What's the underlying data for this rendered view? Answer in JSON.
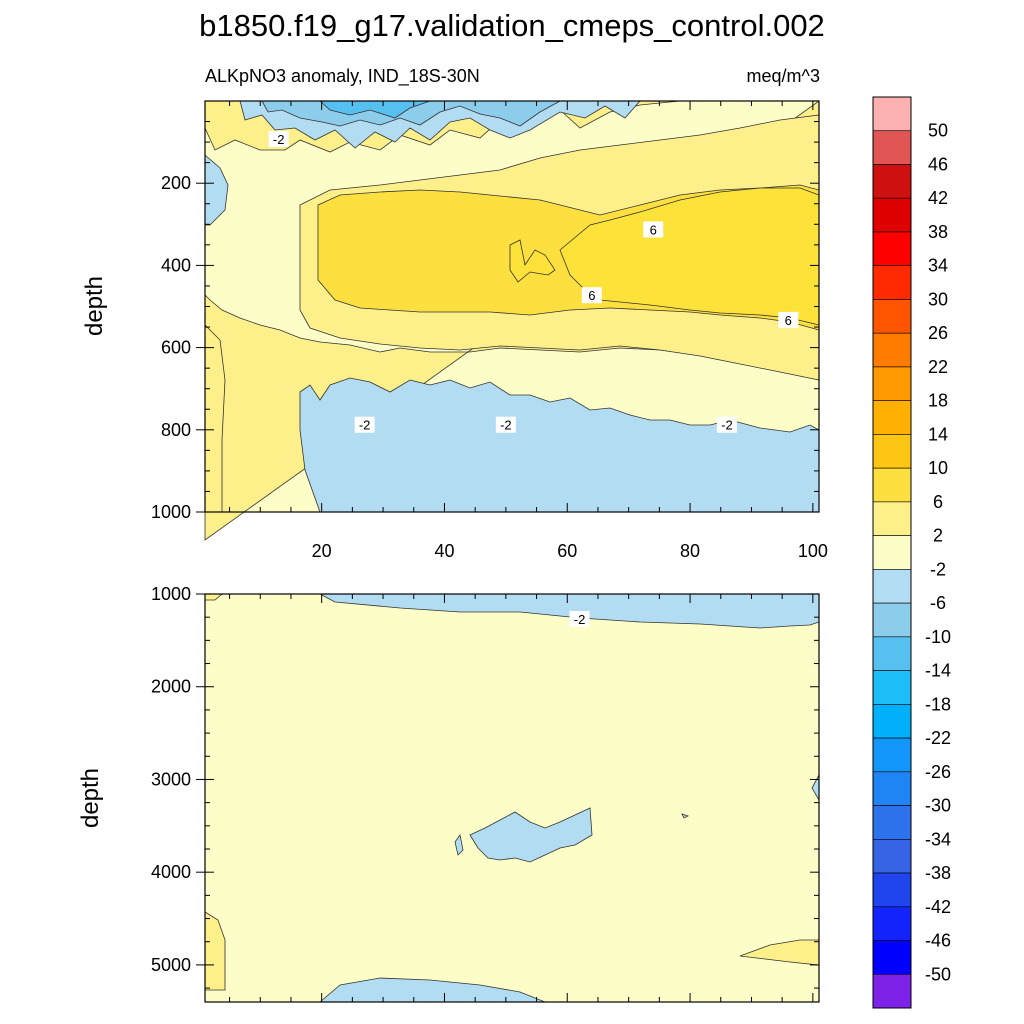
{
  "title": "b1850.f19_g17.validation_cmeps_control.002",
  "chart_data": [
    {
      "type": "heatmap",
      "subtitle_left": "ALKpNO3 anomaly, IND_18S-30N",
      "subtitle_right": "meq/m^3",
      "ylabel": "depth",
      "xlabel": "",
      "xlim": [
        1,
        101
      ],
      "ylim": [
        1000,
        0
      ],
      "x_ticks": [
        20,
        40,
        60,
        80,
        100
      ],
      "y_ticks": [
        200,
        400,
        600,
        800,
        1000
      ],
      "contour_labels": [
        {
          "text": "-2",
          "x": 13,
          "y": 95
        },
        {
          "text": "6",
          "x": 74,
          "y": 315
        },
        {
          "text": "6",
          "x": 64,
          "y": 475
        },
        {
          "text": "6",
          "x": 96,
          "y": 535
        },
        {
          "text": "-2",
          "x": 27,
          "y": 790
        },
        {
          "text": "-2",
          "x": 50,
          "y": 790
        },
        {
          "text": "-2",
          "x": 86,
          "y": 790
        }
      ]
    },
    {
      "type": "heatmap",
      "ylabel": "depth",
      "xlabel": "",
      "xlim": [
        1,
        101
      ],
      "ylim": [
        5400,
        1000
      ],
      "x_ticks": [
        20,
        40,
        60,
        80,
        100
      ],
      "y_ticks": [
        1000,
        2000,
        3000,
        4000,
        5000
      ],
      "contour_labels": [
        {
          "text": "-2",
          "x": 62,
          "y": 1280
        }
      ]
    }
  ],
  "colorbar": {
    "labels": [
      "50",
      "46",
      "42",
      "38",
      "34",
      "30",
      "26",
      "22",
      "18",
      "14",
      "10",
      "6",
      "2",
      "-2",
      "-6",
      "-10",
      "-14",
      "-18",
      "-22",
      "-26",
      "-30",
      "-34",
      "-38",
      "-42",
      "-46",
      "-50"
    ],
    "colors": [
      "#fcb1b1",
      "#e25555",
      "#cf1010",
      "#de0000",
      "#ff0000",
      "#ff2a00",
      "#ff5500",
      "#ff7c00",
      "#ff9900",
      "#ffb000",
      "#fdc614",
      "#fde040",
      "#fdf08a",
      "#fdfdc8",
      "#b2dcf1",
      "#8dcdec",
      "#56c0f0",
      "#1dbdf8",
      "#00b0fa",
      "#1296fa",
      "#1f84f4",
      "#2e73ec",
      "#3563e4",
      "#2045ee",
      "#1224fb",
      "#0000ff",
      "#7e22e7"
    ]
  }
}
